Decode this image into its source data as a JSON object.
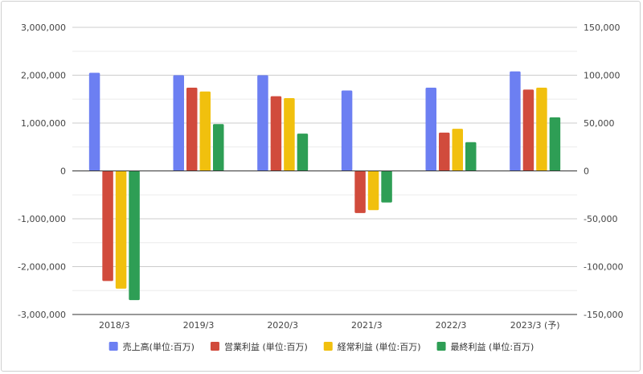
{
  "chart_data": {
    "type": "bar",
    "categories": [
      "2018/3",
      "2019/3",
      "2020/3",
      "2021/3",
      "2022/3",
      "2023/3 (予)"
    ],
    "series": [
      {
        "name": "売上高(単位:百万)",
        "axis": "left",
        "color": "#6c7ff2",
        "values": [
          2050000,
          2000000,
          2000000,
          1680000,
          1740000,
          2080000
        ]
      },
      {
        "name": "営業利益 (単位:百万)",
        "axis": "right",
        "color": "#d14b3c",
        "values": [
          -115000,
          87000,
          78000,
          -44000,
          40000,
          85000
        ]
      },
      {
        "name": "経常利益 (単位:百万)",
        "axis": "right",
        "color": "#f1c00e",
        "values": [
          -123000,
          83000,
          76000,
          -41000,
          44000,
          87000
        ]
      },
      {
        "name": "最終利益 (単位:百万)",
        "axis": "right",
        "color": "#2e9e55",
        "values": [
          -135000,
          49000,
          39000,
          -33000,
          30000,
          56000
        ]
      }
    ],
    "y_left": {
      "ylim": [
        -3000000,
        3000000
      ],
      "ticks": [
        3000000,
        2000000,
        1000000,
        0,
        -1000000,
        -2000000,
        -3000000
      ],
      "tick_labels": [
        "3,000,000",
        "2,000,000",
        "1,000,000",
        "0",
        "-1,000,000",
        "-2,000,000",
        "-3,000,000"
      ]
    },
    "y_right": {
      "ylim": [
        -150000,
        150000
      ],
      "ticks": [
        150000,
        100000,
        50000,
        0,
        -50000,
        -100000,
        -150000
      ],
      "tick_labels": [
        "150,000",
        "100,000",
        "50,000",
        "0",
        "-50,000",
        "-100,000",
        "-150,000"
      ]
    },
    "grid": true,
    "minor_grid": true,
    "legend_position": "bottom"
  }
}
